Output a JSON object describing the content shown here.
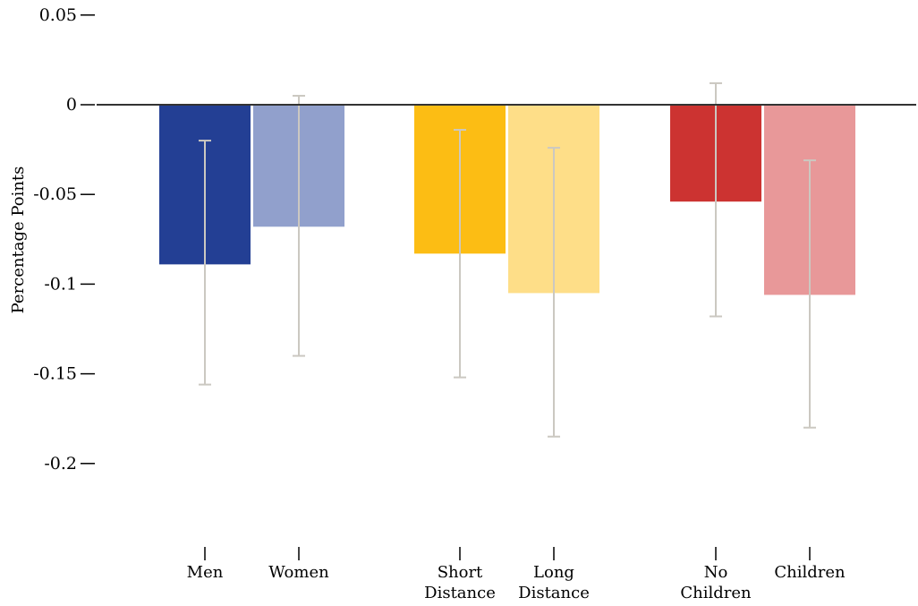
{
  "chart_data": {
    "type": "bar",
    "title": "",
    "xlabel": "",
    "ylabel": "Percentage Points",
    "ylim": [
      -0.25,
      0.05
    ],
    "y_ticks": [
      {
        "value": 0.05,
        "label": "0.05"
      },
      {
        "value": 0,
        "label": "0"
      },
      {
        "value": -0.05,
        "label": "-0.05"
      },
      {
        "value": -0.1,
        "label": "-0.1"
      },
      {
        "value": -0.15,
        "label": "-0.15"
      },
      {
        "value": -0.2,
        "label": "-0.2"
      }
    ],
    "grid": false,
    "legend": "none",
    "zero_line": true,
    "groups": [
      {
        "bars": [
          {
            "label_lines": [
              "Men"
            ],
            "value": -0.089,
            "ci_low": -0.156,
            "ci_high": -0.02,
            "color": "#233f94"
          },
          {
            "label_lines": [
              "Women"
            ],
            "value": -0.068,
            "ci_low": -0.14,
            "ci_high": 0.005,
            "color": "#91a0cc"
          }
        ]
      },
      {
        "bars": [
          {
            "label_lines": [
              "Short",
              "Distance"
            ],
            "value": -0.083,
            "ci_low": -0.152,
            "ci_high": -0.014,
            "color": "#fcbd14"
          },
          {
            "label_lines": [
              "Long",
              "Distance"
            ],
            "value": -0.105,
            "ci_low": -0.185,
            "ci_high": -0.024,
            "color": "#fede88"
          }
        ]
      },
      {
        "bars": [
          {
            "label_lines": [
              "No",
              "Children"
            ],
            "value": -0.054,
            "ci_low": -0.118,
            "ci_high": 0.012,
            "color": "#cc3331"
          },
          {
            "label_lines": [
              "Children"
            ],
            "value": -0.106,
            "ci_low": -0.18,
            "ci_high": -0.031,
            "color": "#e89899"
          }
        ]
      }
    ],
    "error_bar_color": "#cbc8c1"
  }
}
